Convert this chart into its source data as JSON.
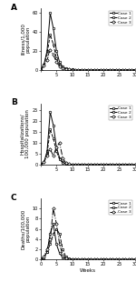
{
  "weeks": [
    0,
    1,
    2,
    3,
    4,
    5,
    6,
    7,
    8,
    9,
    10,
    11,
    12,
    13,
    14,
    15,
    16,
    17,
    18,
    19,
    20,
    21,
    22,
    23,
    24,
    25,
    26,
    27,
    28,
    29,
    30
  ],
  "panel_A": {
    "title": "A",
    "ylabel": "Illness/1,000\npopulation",
    "ylim": [
      0,
      65
    ],
    "yticks": [
      0,
      20,
      40,
      60
    ],
    "case1": [
      0,
      5,
      20,
      60,
      44,
      20,
      8,
      3,
      1.2,
      0.4,
      0.15,
      0.06,
      0.02,
      0.01,
      0.004,
      0.002,
      0.001,
      0.001,
      0,
      0,
      0,
      0,
      0,
      0,
      0,
      0,
      0,
      0,
      0,
      0,
      0
    ],
    "case2": [
      0,
      5,
      17,
      37,
      27,
      12,
      5,
      2,
      0.8,
      0.3,
      0.1,
      0.04,
      0.015,
      0.006,
      0.002,
      0.001,
      0.001,
      0,
      0,
      0,
      0,
      0,
      0,
      0,
      0,
      0,
      0,
      0,
      0,
      0,
      0
    ],
    "case3": [
      0,
      4,
      10,
      21,
      16,
      8,
      3.5,
      1.5,
      0.6,
      0.2,
      0.08,
      0.03,
      0.01,
      0.005,
      0.002,
      0.001,
      0,
      0,
      0,
      0,
      0,
      0,
      0,
      0,
      0,
      0,
      0,
      0,
      0,
      0,
      0
    ]
  },
  "panel_B": {
    "title": "B",
    "ylabel": "Hospitalizations/\n100,000 population",
    "ylim": [
      0,
      28
    ],
    "yticks": [
      0,
      5,
      10,
      15,
      20,
      25
    ],
    "case1": [
      0,
      1,
      6,
      24,
      18,
      8,
      3,
      1,
      0.4,
      0.15,
      0.05,
      0.02,
      0.007,
      0.002,
      0.001,
      0,
      0,
      0,
      0,
      0,
      0,
      0,
      0,
      0,
      0,
      0,
      0,
      0,
      0,
      0,
      0
    ],
    "case2": [
      0,
      1,
      5,
      16,
      12,
      6,
      2.5,
      0.8,
      0.3,
      0.1,
      0.04,
      0.015,
      0.005,
      0.002,
      0.001,
      0,
      0,
      0,
      0,
      0,
      0,
      0,
      0,
      0,
      0,
      0,
      0,
      0,
      0,
      0,
      0
    ],
    "case3": [
      0,
      1,
      4,
      7,
      4,
      8,
      10,
      3,
      0.8,
      0.2,
      0.07,
      0.02,
      0.007,
      0.002,
      0.001,
      0,
      0,
      0,
      0,
      0,
      0,
      0,
      0,
      0,
      0,
      0,
      0,
      0,
      0,
      0,
      0
    ]
  },
  "panel_C": {
    "title": "C",
    "ylabel": "Deaths/100,000\npopulation",
    "ylim": [
      0,
      12
    ],
    "yticks": [
      0,
      2,
      4,
      6,
      8,
      10
    ],
    "case1": [
      0,
      0.3,
      1.5,
      5,
      7,
      3,
      1.2,
      0.4,
      0.15,
      0.05,
      0.02,
      0.007,
      0.002,
      0.001,
      0,
      0,
      0,
      0,
      0,
      0,
      0,
      0,
      0,
      0,
      0,
      0,
      0,
      0,
      0,
      0,
      0
    ],
    "case2": [
      0,
      0.3,
      1.5,
      3,
      5,
      6,
      5,
      2,
      0.5,
      0.15,
      0.05,
      0.015,
      0.005,
      0.002,
      0.001,
      0,
      0,
      0,
      0,
      0,
      0,
      0,
      0,
      0,
      0,
      0,
      0,
      0,
      0,
      0,
      0
    ],
    "case3": [
      0,
      0.5,
      2,
      4,
      10,
      7,
      3,
      0.8,
      0.2,
      0.07,
      0.025,
      0.008,
      0.003,
      0.001,
      0,
      0,
      0,
      0,
      0,
      0,
      0,
      0,
      0,
      0,
      0,
      0,
      0,
      0,
      0,
      0,
      0
    ]
  },
  "xlabel": "Weeks",
  "xlim": [
    0,
    30
  ],
  "xticks": [
    0,
    5,
    10,
    15,
    20,
    25,
    30
  ],
  "legend_labels": [
    "Case 1",
    "Case 2",
    "Case 3"
  ],
  "line_styles": [
    "-",
    "--",
    "-."
  ],
  "markers": [
    "o",
    "s",
    "D"
  ],
  "markersize": 1.8,
  "linewidth": 0.7,
  "color": "black",
  "background": "#ffffff",
  "label_fontsize": 4.0,
  "tick_fontsize": 3.5,
  "legend_fontsize": 3.2,
  "title_fontsize": 6.5
}
